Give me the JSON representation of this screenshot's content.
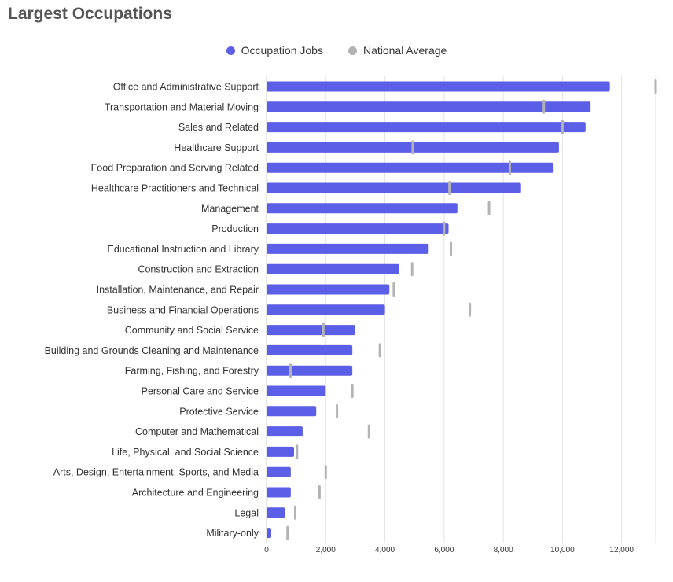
{
  "title": "Largest Occupations",
  "colors": {
    "occupation": "#5b5ee6",
    "national": "#b3b3b3",
    "grid": "#e3e3e3",
    "label": "#333333"
  },
  "legend": [
    {
      "label": "Occupation Jobs",
      "color": "#5b5ee6"
    },
    {
      "label": "National Average",
      "color": "#b3b3b3"
    }
  ],
  "chart_data": {
    "type": "bar",
    "orientation": "horizontal",
    "categories": [
      "Office and Administrative Support",
      "Transportation and Material Moving",
      "Sales and Related",
      "Healthcare Support",
      "Food Preparation and Serving Related",
      "Healthcare Practitioners and Technical",
      "Management",
      "Production",
      "Educational Instruction and Library",
      "Construction and Extraction",
      "Installation, Maintenance, and Repair",
      "Business and Financial Operations",
      "Community and Social Service",
      "Building and Grounds Cleaning and Maintenance",
      "Farming, Fishing, and Forestry",
      "Personal Care and Service",
      "Protective Service",
      "Computer and Mathematical",
      "Life, Physical, and Social Science",
      "Arts, Design, Entertainment, Sports, and Media",
      "Architecture and Engineering",
      "Legal",
      "Military-only"
    ],
    "series": [
      {
        "name": "Occupation Jobs",
        "values": [
          11600,
          10950,
          10780,
          9880,
          9700,
          8600,
          6450,
          6150,
          5480,
          4480,
          4150,
          4000,
          3000,
          2900,
          2900,
          2000,
          1680,
          1220,
          930,
          820,
          820,
          620,
          160
        ]
      },
      {
        "name": "National Average",
        "values": [
          13150,
          9370,
          10000,
          4940,
          8220,
          6180,
          7520,
          6000,
          6230,
          4920,
          4300,
          6870,
          1920,
          3830,
          810,
          2900,
          2380,
          3460,
          1030,
          2000,
          1790,
          970,
          710
        ]
      }
    ],
    "xlim": [
      0,
      13150
    ],
    "xticks": [
      0,
      2000,
      4000,
      6000,
      8000,
      10000,
      12000
    ],
    "xtick_labels": [
      "0",
      "2,000",
      "4,000",
      "6,000",
      "8,000",
      "10,000",
      "12,000"
    ],
    "grid": true,
    "legend_position": "top-center"
  }
}
